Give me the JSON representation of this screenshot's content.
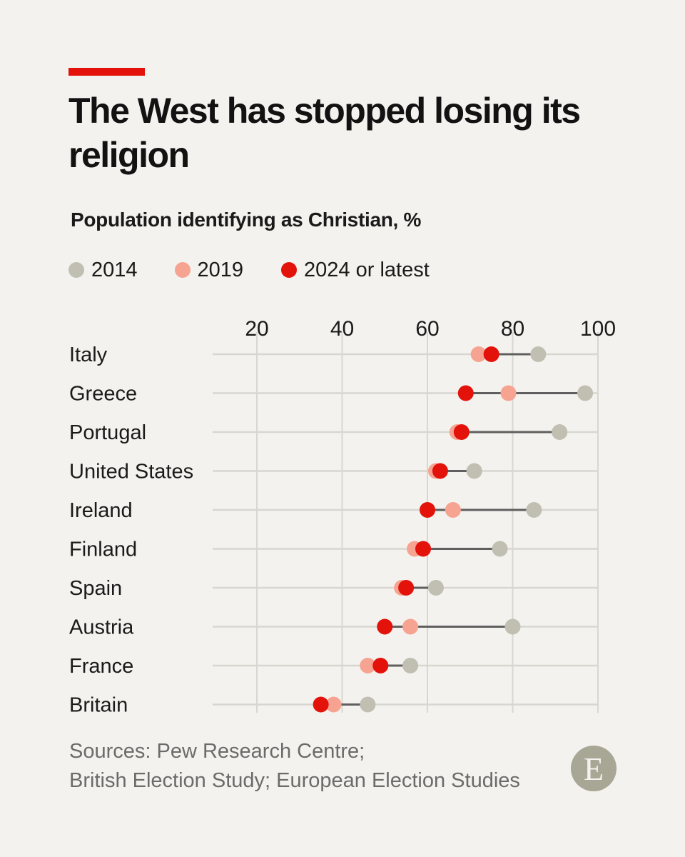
{
  "header": {
    "title": "The West has stopped losing its religion",
    "subtitle": "Population identifying as Christian, %"
  },
  "legend": {
    "items": [
      {
        "label": "2014",
        "color": "#c1bfb1"
      },
      {
        "label": "2019",
        "color": "#f6a391"
      },
      {
        "label": "2024 or latest",
        "color": "#e3120b"
      }
    ]
  },
  "chart_data": {
    "type": "dot",
    "title": "Population identifying as Christian, %",
    "xlim": [
      0,
      100
    ],
    "ticks": [
      20,
      40,
      60,
      80,
      100
    ],
    "grid": true,
    "legend_position": "top",
    "categories": [
      "Italy",
      "Greece",
      "Portugal",
      "United States",
      "Ireland",
      "Finland",
      "Spain",
      "Austria",
      "France",
      "Britain"
    ],
    "series": [
      {
        "name": "2014",
        "color": "#c1bfb1",
        "values": [
          86,
          97,
          91,
          71,
          85,
          77,
          62,
          80,
          56,
          46
        ]
      },
      {
        "name": "2019",
        "color": "#f6a391",
        "values": [
          72,
          79,
          67,
          62,
          66,
          57,
          54,
          56,
          46,
          38
        ]
      },
      {
        "name": "2024 or latest",
        "color": "#e3120b",
        "values": [
          75,
          69,
          68,
          63,
          60,
          59,
          55,
          50,
          49,
          35
        ]
      }
    ]
  },
  "footer": {
    "source_line1": "Sources: Pew Research Centre;",
    "source_line2": "British Election Study; European Election Studies",
    "logo_letter": "E"
  }
}
